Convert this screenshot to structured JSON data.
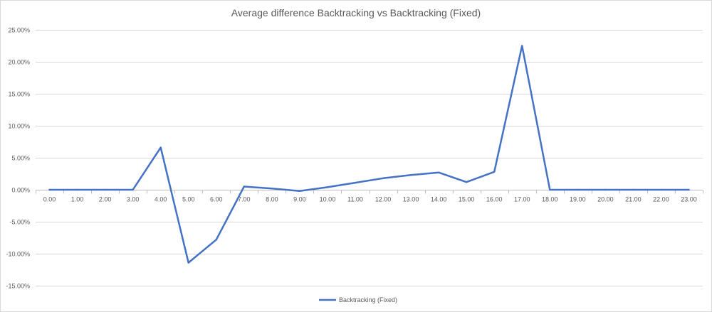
{
  "chart_data": {
    "type": "line",
    "title": "Average difference Backtracking vs Backtracking (Fixed)",
    "xlabel": "",
    "ylabel": "",
    "categories": [
      "0.00",
      "1.00",
      "2.00",
      "3.00",
      "4.00",
      "5.00",
      "6.00",
      "7.00",
      "8.00",
      "9.00",
      "10.00",
      "11.00",
      "12.00",
      "13.00",
      "14.00",
      "15.00",
      "16.00",
      "17.00",
      "18.00",
      "19.00",
      "20.00",
      "21.00",
      "22.00",
      "23.00"
    ],
    "series": [
      {
        "name": "Backtracking (Fixed)",
        "color": "#4472c4",
        "values": [
          0,
          0,
          0,
          0,
          6.6,
          -11.4,
          -7.8,
          0.5,
          0.2,
          -0.2,
          0.4,
          1.1,
          1.8,
          2.3,
          2.7,
          1.2,
          2.8,
          22.5,
          0,
          0,
          0,
          0,
          0,
          0
        ]
      }
    ],
    "ylim": [
      -15,
      25
    ],
    "yticks": [
      -15,
      -10,
      -5,
      0,
      5,
      10,
      15,
      20,
      25
    ],
    "ytick_labels": [
      "-15.00%",
      "-10.00%",
      "-5.00%",
      "0.00%",
      "5.00%",
      "10.00%",
      "15.00%",
      "20.00%",
      "25.00%"
    ],
    "grid": true,
    "legend": "bottom"
  }
}
